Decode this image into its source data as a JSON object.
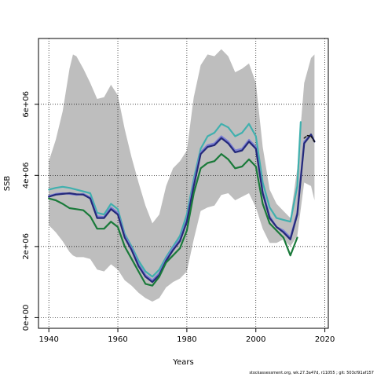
{
  "chart_data": {
    "type": "line",
    "title": "",
    "xlabel": "Years",
    "ylabel": "SSB",
    "xlim": [
      1937,
      2021
    ],
    "ylim": [
      -300000,
      7850000
    ],
    "x_ticks": [
      1940,
      1960,
      1980,
      2000,
      2020
    ],
    "x_tick_labels": [
      "1940",
      "1960",
      "1980",
      "2000",
      "2020"
    ],
    "y_ticks": [
      0,
      2000000,
      4000000,
      6000000
    ],
    "y_tick_labels": [
      "0e+00",
      "2e+06",
      "4e+06",
      "6e+06"
    ],
    "grid": true,
    "band": {
      "x": [
        1940,
        1942,
        1944,
        1946,
        1947,
        1948,
        1950,
        1952,
        1954,
        1956,
        1958,
        1960,
        1962,
        1964,
        1966,
        1968,
        1970,
        1972,
        1974,
        1976,
        1978,
        1980,
        1982,
        1984,
        1986,
        1988,
        1990,
        1992,
        1994,
        1996,
        1998,
        2000,
        2002,
        2004,
        2006,
        2008,
        2010,
        2012,
        2014,
        2016,
        2017
      ],
      "upper": [
        4400000,
        5000000,
        5800000,
        7000000,
        7400000,
        7350000,
        7000000,
        6600000,
        6150000,
        6200000,
        6550000,
        6250000,
        5300000,
        4500000,
        3800000,
        3150000,
        2650000,
        2900000,
        3700000,
        4200000,
        4400000,
        4700000,
        6200000,
        7100000,
        7400000,
        7350000,
        7550000,
        7350000,
        6900000,
        7000000,
        7150000,
        6600000,
        4800000,
        3600000,
        3200000,
        3000000,
        2800000,
        4200000,
        6600000,
        7300000,
        7400000
      ],
      "lower": [
        2600000,
        2400000,
        2150000,
        1850000,
        1750000,
        1700000,
        1700000,
        1650000,
        1350000,
        1300000,
        1500000,
        1350000,
        1050000,
        900000,
        700000,
        550000,
        450000,
        550000,
        850000,
        1000000,
        1100000,
        1300000,
        2200000,
        3000000,
        3100000,
        3150000,
        3450000,
        3500000,
        3300000,
        3400000,
        3500000,
        3100000,
        2500000,
        2100000,
        2100000,
        2200000,
        2000000,
        2300000,
        3800000,
        3700000,
        3300000
      ]
    },
    "series": [
      {
        "color": "#40b0ae",
        "x": [
          1940,
          1942,
          1944,
          1946,
          1948,
          1950,
          1952,
          1954,
          1956,
          1958,
          1960,
          1962,
          1964,
          1966,
          1968,
          1970,
          1972,
          1974,
          1976,
          1978,
          1980,
          1982,
          1984,
          1986,
          1988,
          1990,
          1992,
          1994,
          1996,
          1998,
          2000,
          2002,
          2004,
          2006,
          2008,
          2010,
          2012,
          2013
        ],
        "values": [
          3600000,
          3650000,
          3680000,
          3650000,
          3600000,
          3550000,
          3500000,
          2950000,
          2900000,
          3200000,
          3050000,
          2350000,
          2000000,
          1600000,
          1300000,
          1150000,
          1350000,
          1700000,
          2000000,
          2300000,
          2900000,
          3900000,
          4750000,
          5100000,
          5200000,
          5450000,
          5350000,
          5100000,
          5200000,
          5450000,
          5100000,
          3800000,
          3100000,
          2800000,
          2750000,
          2700000,
          3700000,
          5500000
        ]
      },
      {
        "color": "#7b7fd4",
        "x": [
          1940,
          1942,
          1944,
          1946,
          1948,
          1950,
          1952,
          1954,
          1956,
          1958,
          1960,
          1962,
          1964,
          1966,
          1968,
          1970,
          1972,
          1974,
          1976,
          1978,
          1980,
          1982,
          1984,
          1986,
          1988,
          1990,
          1992,
          1994,
          1996,
          1998,
          2000,
          2002,
          2004,
          2006,
          2008,
          2010,
          2012,
          2014,
          2016,
          2017
        ],
        "values": [
          3420000,
          3480000,
          3500000,
          3480000,
          3450000,
          3480000,
          3380000,
          2850000,
          2830000,
          3100000,
          2950000,
          2300000,
          1950000,
          1500000,
          1200000,
          1050000,
          1250000,
          1650000,
          1950000,
          2200000,
          2750000,
          3800000,
          4650000,
          4850000,
          4900000,
          5100000,
          4950000,
          4700000,
          4750000,
          5000000,
          4800000,
          3550000,
          2850000,
          2550000,
          2450000,
          2250000,
          2950000,
          4950000,
          5150000,
          4950000
        ]
      },
      {
        "color": "#24297a",
        "x": [
          1940,
          1942,
          1944,
          1946,
          1948,
          1950,
          1952,
          1954,
          1956,
          1958,
          1960,
          1962,
          1964,
          1966,
          1968,
          1970,
          1972,
          1974,
          1976,
          1978,
          1980,
          1982,
          1984,
          1986,
          1988,
          1990,
          1992,
          1994,
          1996,
          1998,
          2000,
          2002,
          2004,
          2006,
          2008,
          2010,
          2012,
          2014,
          2016,
          2017
        ],
        "values": [
          3400000,
          3460000,
          3480000,
          3500000,
          3470000,
          3460000,
          3350000,
          2800000,
          2800000,
          3050000,
          2900000,
          2250000,
          1900000,
          1450000,
          1150000,
          1000000,
          1200000,
          1600000,
          1900000,
          2150000,
          2700000,
          3700000,
          4600000,
          4800000,
          4850000,
          5050000,
          4900000,
          4650000,
          4700000,
          4950000,
          4750000,
          3500000,
          2800000,
          2550000,
          2400000,
          2200000,
          2900000,
          4900000,
          5150000,
          4950000
        ]
      },
      {
        "color": "#1a7a3a",
        "x": [
          1940,
          1942,
          1944,
          1946,
          1948,
          1950,
          1952,
          1954,
          1956,
          1958,
          1960,
          1962,
          1964,
          1966,
          1968,
          1970,
          1972,
          1974,
          1976,
          1978,
          1980,
          1982,
          1984,
          1986,
          1988,
          1990,
          1992,
          1994,
          1996,
          1998,
          2000,
          2002,
          2004,
          2006,
          2008,
          2010,
          2012
        ],
        "values": [
          3350000,
          3300000,
          3200000,
          3080000,
          3050000,
          3020000,
          2850000,
          2500000,
          2500000,
          2700000,
          2550000,
          2000000,
          1650000,
          1300000,
          950000,
          900000,
          1150000,
          1550000,
          1750000,
          1950000,
          2450000,
          3500000,
          4200000,
          4350000,
          4400000,
          4600000,
          4450000,
          4200000,
          4250000,
          4450000,
          4250000,
          3200000,
          2650000,
          2450000,
          2250000,
          1750000,
          2250000
        ]
      },
      {
        "color": "#111111",
        "dashed": true,
        "x": [
          2014,
          2015,
          2016,
          2017
        ],
        "values": [
          5050000,
          5120000,
          5100000,
          4950000
        ]
      }
    ]
  },
  "footer": {
    "text": "stockassessment.org, wk.27.3a47d, r11055 ; git: 503cf91af157"
  }
}
